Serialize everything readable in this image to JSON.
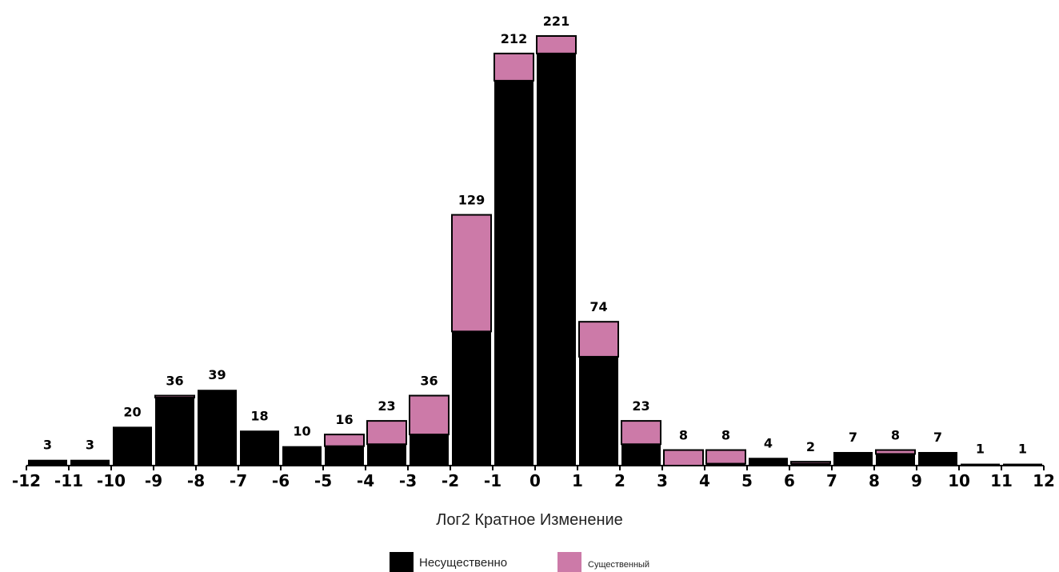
{
  "chart_data": {
    "type": "bar",
    "stacked": true,
    "x_ticks": [
      "-12",
      "-11",
      "-10",
      "-9",
      "-8",
      "-7",
      "-6",
      "-5",
      "-4",
      "-3",
      "-2",
      "-1",
      "0",
      "1",
      "2",
      "3",
      "4",
      "5",
      "6",
      "7",
      "8",
      "9",
      "10",
      "11",
      "12"
    ],
    "bins": [
      -12,
      -11,
      -10,
      -9,
      -8,
      -7,
      -6,
      -5,
      -4,
      -3,
      -2,
      -1,
      0,
      1,
      2,
      3,
      4,
      5,
      6,
      7,
      8,
      9,
      10,
      11
    ],
    "totals": [
      3,
      3,
      20,
      36,
      39,
      18,
      10,
      16,
      23,
      36,
      129,
      212,
      221,
      74,
      23,
      8,
      8,
      4,
      2,
      7,
      8,
      7,
      1,
      1
    ],
    "series": [
      {
        "name": "Несущественно",
        "color": "#000000",
        "values": [
          3,
          3,
          20,
          35,
          39,
          18,
          10,
          10,
          11,
          16,
          69,
          198,
          212,
          56,
          11,
          0,
          1,
          4,
          1,
          7,
          6,
          7,
          1,
          1
        ]
      },
      {
        "name": "Существенный",
        "color": "#cc7aa8",
        "values": [
          0,
          0,
          0,
          1,
          0,
          0,
          0,
          6,
          12,
          20,
          60,
          14,
          9,
          18,
          12,
          8,
          7,
          0,
          1,
          0,
          2,
          0,
          0,
          0
        ]
      }
    ],
    "data_labels": [
      "3",
      "3",
      "20",
      "36",
      "39",
      "18",
      "10",
      "16",
      "23",
      "36",
      "129",
      "212",
      "221",
      "74",
      "23",
      "8",
      "8",
      "4",
      "2",
      "7",
      "8",
      "7",
      "1",
      "1"
    ],
    "title": "",
    "xlabel": "Лог2 Кратное Изменение",
    "ylabel": "",
    "xlim": [
      -12,
      12
    ],
    "ylim": [
      0,
      221
    ],
    "grid": false,
    "legend_position": "bottom-center"
  }
}
